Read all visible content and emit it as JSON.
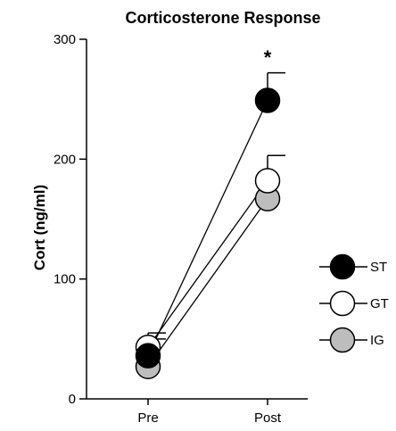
{
  "chart_data": {
    "type": "line",
    "title": "Corticosterone Response",
    "xlabel": "",
    "ylabel": "Cort (ng/ml)",
    "categories": [
      "Pre",
      "Post"
    ],
    "ylim": [
      0,
      300
    ],
    "yticks": [
      0,
      100,
      200,
      300
    ],
    "grid": false,
    "legend_position": "right",
    "series": [
      {
        "name": "ST",
        "values": [
          36,
          249
        ],
        "error": [
          14,
          23
        ],
        "fill": "#000000"
      },
      {
        "name": "GT",
        "values": [
          43,
          182
        ],
        "error": [
          12,
          21
        ],
        "fill": "#ffffff"
      },
      {
        "name": "IG",
        "values": [
          27,
          167
        ],
        "error": [
          0,
          0
        ],
        "fill": "#bdbdbd"
      }
    ],
    "annotations": [
      {
        "text": "*",
        "category": "Post",
        "y": 285
      }
    ]
  }
}
